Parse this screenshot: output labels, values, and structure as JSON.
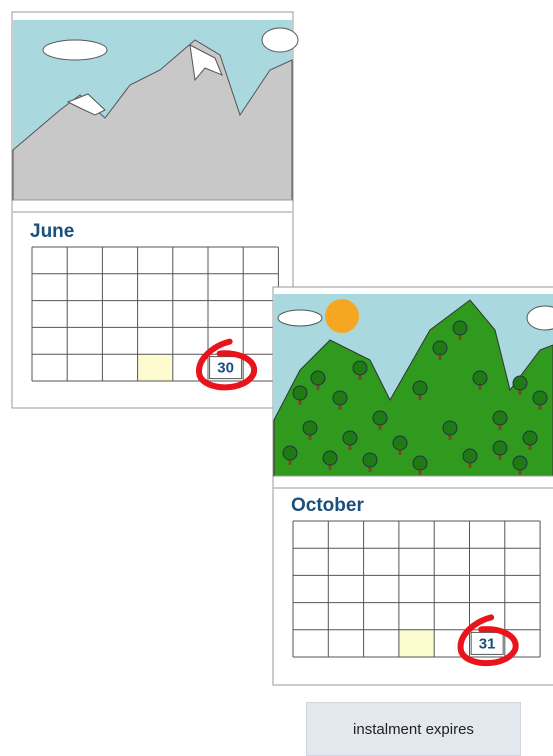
{
  "calendars": [
    {
      "month": "June",
      "day": 30
    },
    {
      "month": "October",
      "day": 31
    }
  ],
  "label": "instalment expires"
}
